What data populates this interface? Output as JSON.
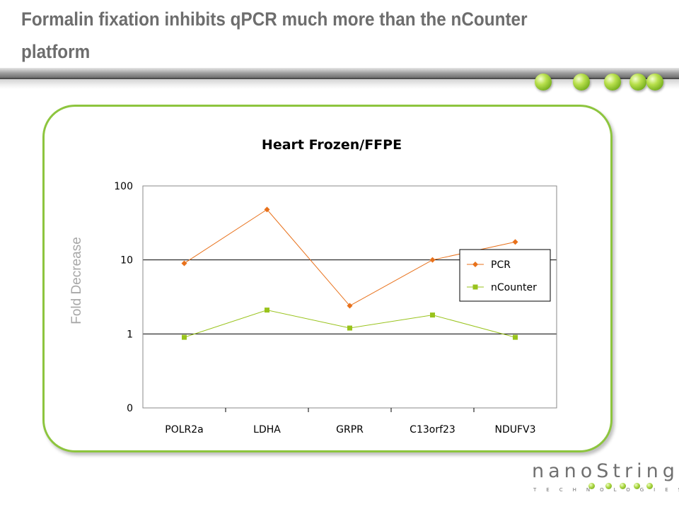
{
  "slide": {
    "title": "Formalin fixation inhibits qPCR much more than the nCounter platform"
  },
  "colors": {
    "accent_green": "#8dc53e",
    "pcr_series": "#e8711b",
    "ncounter_series": "#99c31c",
    "title_gray": "#6d6d6d"
  },
  "logo": {
    "word": "nanoString",
    "sub": "TECHNOLOGIES"
  },
  "chart_data": {
    "type": "line",
    "title": "Heart Frozen/FFPE",
    "ylabel": "Fold Decrease",
    "xlabel": "",
    "y_scale": "log",
    "ylim": [
      0.1,
      100
    ],
    "y_ticks": [
      {
        "value": 100,
        "label": "100"
      },
      {
        "value": 10,
        "label": "10"
      },
      {
        "value": 1,
        "label": "1"
      },
      {
        "value": 0.1,
        "label": "0"
      }
    ],
    "grid": "major y",
    "legend_position": "right",
    "categories": [
      "POLR2a",
      "LDHA",
      "GRPR",
      "C13orf23",
      "NDUFV3"
    ],
    "series": [
      {
        "name": "PCR",
        "values": [
          9,
          48,
          2.4,
          10,
          17.5
        ],
        "color": "#e8711b",
        "marker": "diamond"
      },
      {
        "name": "nCounter",
        "values": [
          0.9,
          2.1,
          1.2,
          1.8,
          0.9
        ],
        "color": "#99c31c",
        "marker": "square"
      }
    ]
  }
}
